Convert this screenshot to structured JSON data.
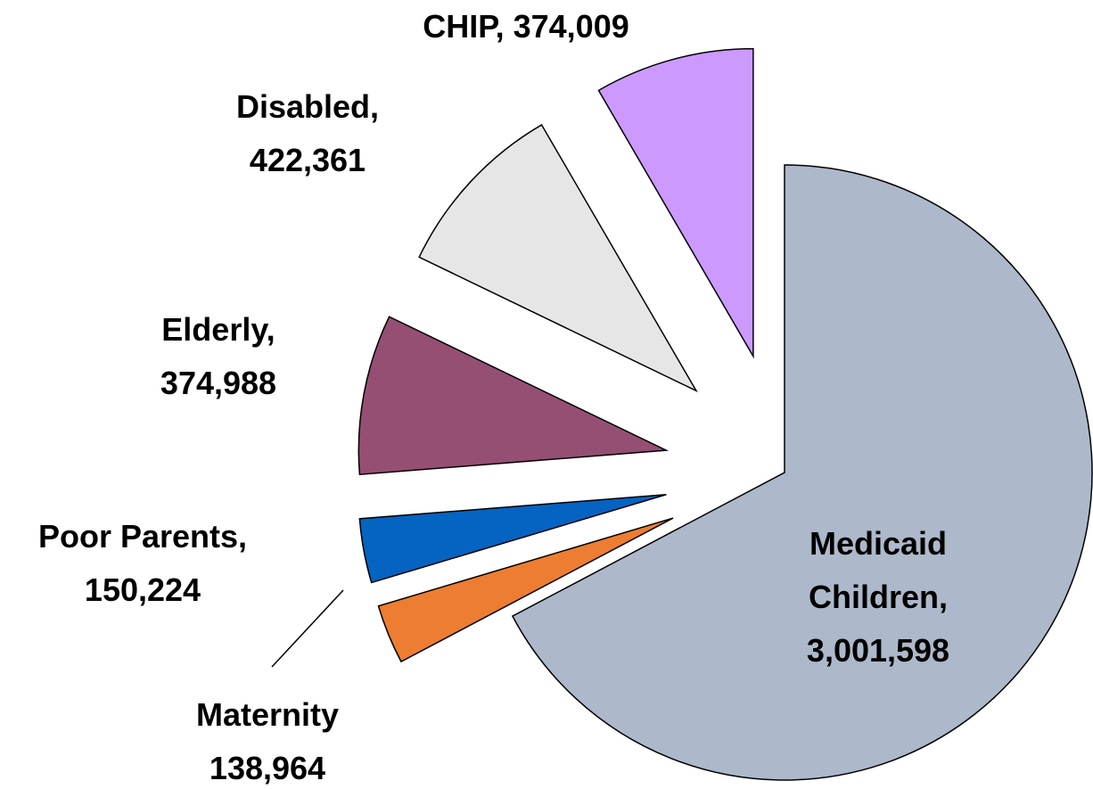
{
  "chart_data": {
    "type": "pie",
    "categories": [
      "Medicaid Children,",
      "Maternity",
      "Poor Parents,",
      "Elderly,",
      "Disabled,",
      "CHIP,"
    ],
    "values": [
      3001598,
      138964,
      150224,
      374988,
      422361,
      374009
    ],
    "value_labels": [
      "3,001,598",
      "138,964",
      "150,224",
      "374,988",
      "422,361",
      "374,009"
    ],
    "colors": [
      "#ADB9CA",
      "#ED7D31",
      "#0563C1",
      "#954F72",
      "#E7E6E6",
      "#CC99FF"
    ]
  }
}
